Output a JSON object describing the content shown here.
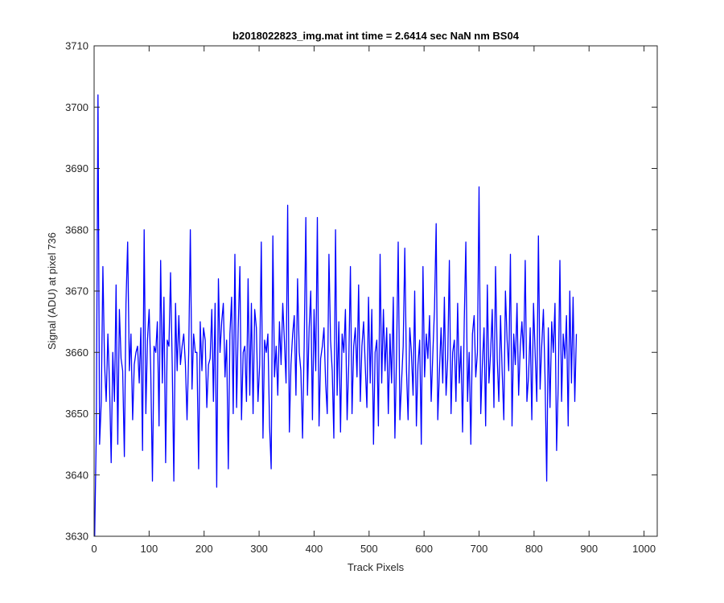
{
  "chart_data": {
    "type": "line",
    "title": "b2018022823_img.mat int time = 2.6414 sec  NaN nm BS04",
    "xlabel": "Track Pixels",
    "ylabel": "Signal (ADU) at pixel 736",
    "xlim": [
      0,
      1024
    ],
    "ylim": [
      3630,
      3710
    ],
    "xticks": [
      0,
      100,
      200,
      300,
      400,
      500,
      600,
      700,
      800,
      900,
      1000
    ],
    "yticks": [
      3630,
      3640,
      3650,
      3660,
      3670,
      3680,
      3690,
      3700,
      3710
    ],
    "grid": false,
    "legend": "none",
    "series": [
      {
        "color": "#0000ff",
        "x_start": 1,
        "x_step": 3,
        "values": [
          3630,
          3647,
          3702,
          3645,
          3652,
          3674,
          3658,
          3652,
          3663,
          3655,
          3642,
          3660,
          3652,
          3671,
          3645,
          3667,
          3659,
          3657,
          3643,
          3668,
          3678,
          3657,
          3663,
          3649,
          3658,
          3660,
          3661,
          3655,
          3664,
          3644,
          3680,
          3650,
          3662,
          3667,
          3657,
          3639,
          3661,
          3660,
          3665,
          3648,
          3675,
          3655,
          3669,
          3642,
          3662,
          3661,
          3673,
          3658,
          3639,
          3668,
          3657,
          3666,
          3658,
          3661,
          3663,
          3658,
          3649,
          3660,
          3680,
          3654,
          3663,
          3660,
          3660,
          3641,
          3665,
          3657,
          3664,
          3662,
          3651,
          3658,
          3659,
          3667,
          3652,
          3668,
          3638,
          3672,
          3660,
          3665,
          3668,
          3656,
          3662,
          3641,
          3663,
          3669,
          3650,
          3676,
          3651,
          3664,
          3674,
          3649,
          3660,
          3661,
          3652,
          3672,
          3653,
          3668,
          3650,
          3667,
          3664,
          3652,
          3658,
          3678,
          3646,
          3662,
          3660,
          3663,
          3648,
          3641,
          3679,
          3656,
          3661,
          3653,
          3665,
          3658,
          3668,
          3662,
          3655,
          3684,
          3647,
          3658,
          3663,
          3666,
          3653,
          3672,
          3660,
          3657,
          3646,
          3661,
          3682,
          3653,
          3664,
          3670,
          3649,
          3667,
          3657,
          3682,
          3648,
          3659,
          3661,
          3664,
          3655,
          3650,
          3676,
          3662,
          3657,
          3646,
          3680,
          3653,
          3665,
          3647,
          3663,
          3660,
          3667,
          3649,
          3658,
          3674,
          3650,
          3661,
          3664,
          3656,
          3671,
          3652,
          3661,
          3665,
          3658,
          3651,
          3669,
          3655,
          3667,
          3645,
          3660,
          3662,
          3648,
          3676,
          3655,
          3667,
          3657,
          3664,
          3650,
          3663,
          3655,
          3669,
          3646,
          3660,
          3678,
          3649,
          3655,
          3661,
          3677,
          3657,
          3649,
          3664,
          3660,
          3653,
          3670,
          3648,
          3658,
          3662,
          3645,
          3674,
          3656,
          3663,
          3659,
          3666,
          3652,
          3660,
          3667,
          3681,
          3649,
          3657,
          3664,
          3655,
          3669,
          3653,
          3659,
          3675,
          3650,
          3660,
          3662,
          3652,
          3668,
          3655,
          3661,
          3647,
          3665,
          3678,
          3652,
          3660,
          3645,
          3663,
          3666,
          3656,
          3660,
          3687,
          3650,
          3658,
          3664,
          3648,
          3671,
          3655,
          3660,
          3667,
          3651,
          3674,
          3659,
          3652,
          3666,
          3657,
          3649,
          3670,
          3662,
          3657,
          3676,
          3648,
          3663,
          3658,
          3668,
          3653,
          3661,
          3665,
          3659,
          3675,
          3652,
          3656,
          3664,
          3649,
          3668,
          3660,
          3652,
          3679,
          3654,
          3661,
          3667,
          3656,
          3639,
          3664,
          3651,
          3665,
          3660,
          3668,
          3644,
          3655,
          3675,
          3652,
          3663,
          3659,
          3666,
          3648,
          3670,
          3655,
          3669,
          3652,
          3663
        ]
      }
    ]
  }
}
